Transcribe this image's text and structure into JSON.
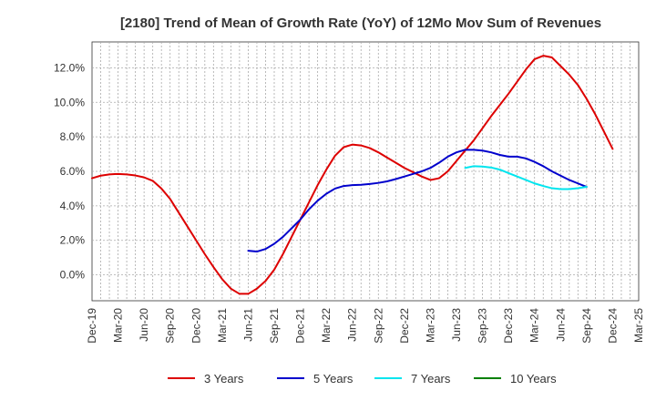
{
  "chart_data": {
    "type": "line",
    "title": "[2180]  Trend of Mean of Growth Rate (YoY) of 12Mo Mov Sum of Revenues",
    "xlabel": "",
    "ylabel": "",
    "ylim": [
      -1.5,
      13.5
    ],
    "yticks": [
      0,
      2,
      4,
      6,
      8,
      10,
      12
    ],
    "ytick_labels": [
      "0.0%",
      "2.0%",
      "4.0%",
      "6.0%",
      "8.0%",
      "10.0%",
      "12.0%"
    ],
    "x_start": "Dec-19",
    "x_end": "Mar-25",
    "xtick_labels": [
      "Dec-19",
      "Mar-20",
      "Jun-20",
      "Sep-20",
      "Dec-20",
      "Mar-21",
      "Jun-21",
      "Sep-21",
      "Dec-21",
      "Mar-22",
      "Jun-22",
      "Sep-22",
      "Dec-22",
      "Mar-23",
      "Jun-23",
      "Sep-23",
      "Dec-23",
      "Mar-24",
      "Jun-24",
      "Sep-24",
      "Dec-24",
      "Mar-25"
    ],
    "grid": true,
    "legend_position": "bottom",
    "series": [
      {
        "name": "3 Years",
        "color": "#dd0000",
        "start_index": 0,
        "values": [
          5.6,
          5.75,
          5.82,
          5.85,
          5.82,
          5.76,
          5.65,
          5.45,
          5.0,
          4.4,
          3.6,
          2.8,
          2.0,
          1.2,
          0.45,
          -0.25,
          -0.8,
          -1.1,
          -1.1,
          -0.8,
          -0.35,
          0.3,
          1.2,
          2.2,
          3.2,
          4.2,
          5.2,
          6.1,
          6.9,
          7.4,
          7.55,
          7.5,
          7.35,
          7.1,
          6.8,
          6.5,
          6.2,
          5.95,
          5.7,
          5.5,
          5.6,
          6.0,
          6.6,
          7.2,
          7.8,
          8.5,
          9.2,
          9.85,
          10.5,
          11.2,
          11.9,
          12.5,
          12.7,
          12.6,
          12.1,
          11.6,
          11.0,
          10.2,
          9.3,
          8.3,
          7.3
        ]
      },
      {
        "name": "5 Years",
        "color": "#0000cc",
        "start_index": 18,
        "values": [
          1.4,
          1.35,
          1.5,
          1.8,
          2.2,
          2.7,
          3.2,
          3.8,
          4.3,
          4.7,
          5.0,
          5.15,
          5.2,
          5.22,
          5.27,
          5.33,
          5.42,
          5.55,
          5.7,
          5.85,
          6.0,
          6.2,
          6.5,
          6.85,
          7.1,
          7.25,
          7.25,
          7.2,
          7.1,
          6.95,
          6.85,
          6.85,
          6.75,
          6.55,
          6.3,
          6.0,
          5.75,
          5.5,
          5.3,
          5.1
        ]
      },
      {
        "name": "7 Years",
        "color": "#00e5ee",
        "start_index": 43,
        "values": [
          6.2,
          6.3,
          6.28,
          6.22,
          6.1,
          5.9,
          5.7,
          5.5,
          5.3,
          5.15,
          5.02,
          4.97,
          4.97,
          5.02,
          5.1
        ]
      },
      {
        "name": "10 Years",
        "color": "#008000",
        "start_index": 0,
        "values": []
      }
    ]
  }
}
